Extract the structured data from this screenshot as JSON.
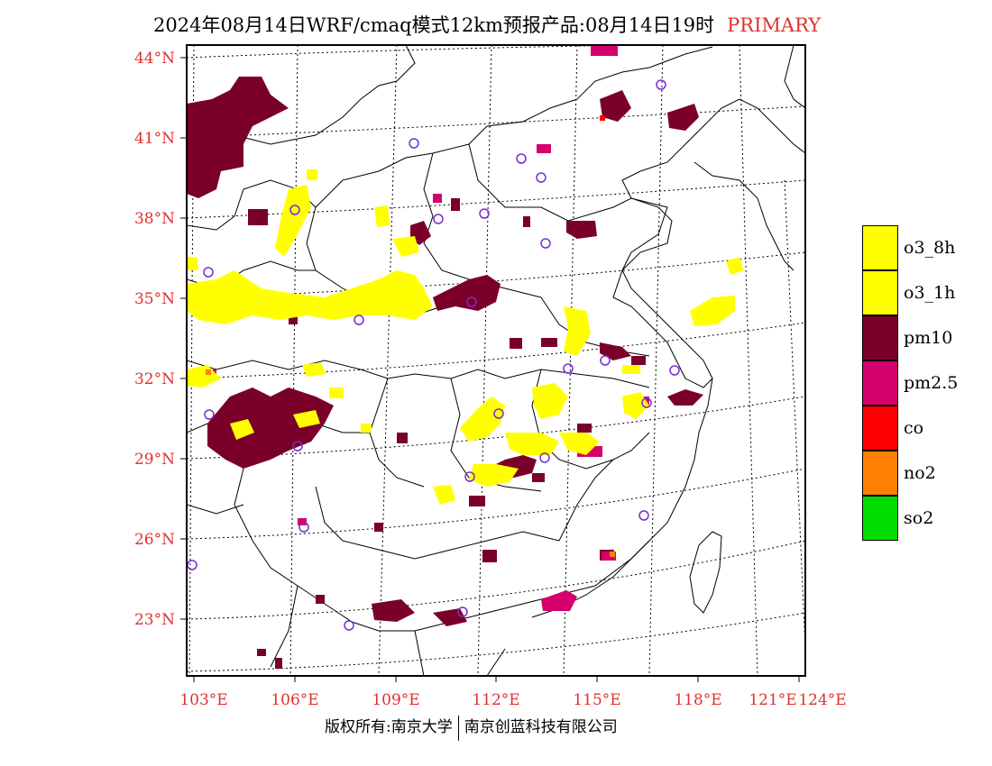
{
  "header": {
    "title": "2024年08月14日WRF/cmaq模式12km预报产品:08月14日19时",
    "primary_label": "PRIMARY"
  },
  "map": {
    "lat_labels": [
      "44°N",
      "41°N",
      "38°N",
      "35°N",
      "32°N",
      "29°N",
      "26°N",
      "23°N"
    ],
    "lon_labels": [
      "103°E",
      "106°E",
      "109°E",
      "112°E",
      "115°E",
      "118°E",
      "121°E",
      "124°E"
    ],
    "label_color": "#e03030"
  },
  "legend": {
    "items": [
      {
        "label": "o3_8h",
        "color": "#ffff00"
      },
      {
        "label": "o3_1h",
        "color": "#ffff00"
      },
      {
        "label": "pm10",
        "color": "#7a0029"
      },
      {
        "label": "pm2.5",
        "color": "#d4006e"
      },
      {
        "label": "co",
        "color": "#ff0000"
      },
      {
        "label": "no2",
        "color": "#ff7f00"
      },
      {
        "label": "so2",
        "color": "#00dd00"
      }
    ]
  },
  "footer": {
    "left": "版权所有:南京大学",
    "right": "南京创蓝科技有限公司"
  }
}
